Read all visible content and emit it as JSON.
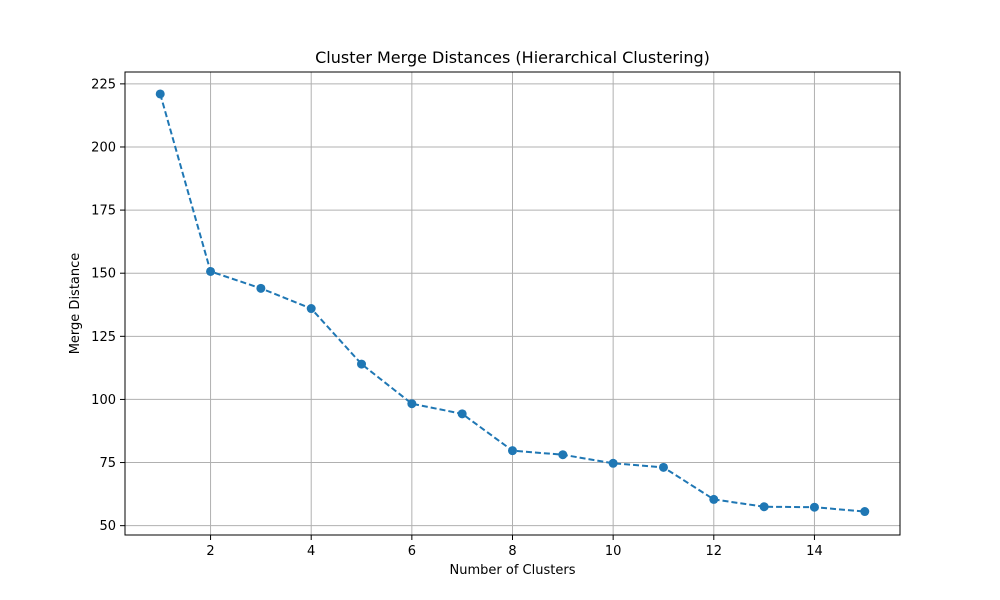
{
  "chart_data": {
    "type": "line",
    "title": "Cluster Merge Distances (Hierarchical Clustering)",
    "xlabel": "Number of Clusters",
    "ylabel": "Merge Distance",
    "x": [
      1,
      2,
      3,
      4,
      5,
      6,
      7,
      8,
      9,
      10,
      11,
      12,
      13,
      14,
      15
    ],
    "series": [
      {
        "values": [
          221,
          150.7,
          144,
          136,
          114,
          98.3,
          94.3,
          79.7,
          78.1,
          74.7,
          73.1,
          60.4,
          57.5,
          57.3,
          55.6
        ],
        "color": "#1f77b4",
        "line_style": "dashed",
        "marker": "circle"
      }
    ],
    "xlim": [
      0.3,
      15.7
    ],
    "ylim": [
      46.3,
      229.7
    ],
    "xticks": [
      2,
      4,
      6,
      8,
      10,
      12,
      14
    ],
    "yticks": [
      50,
      75,
      100,
      125,
      150,
      175,
      200,
      225
    ],
    "grid": true
  }
}
